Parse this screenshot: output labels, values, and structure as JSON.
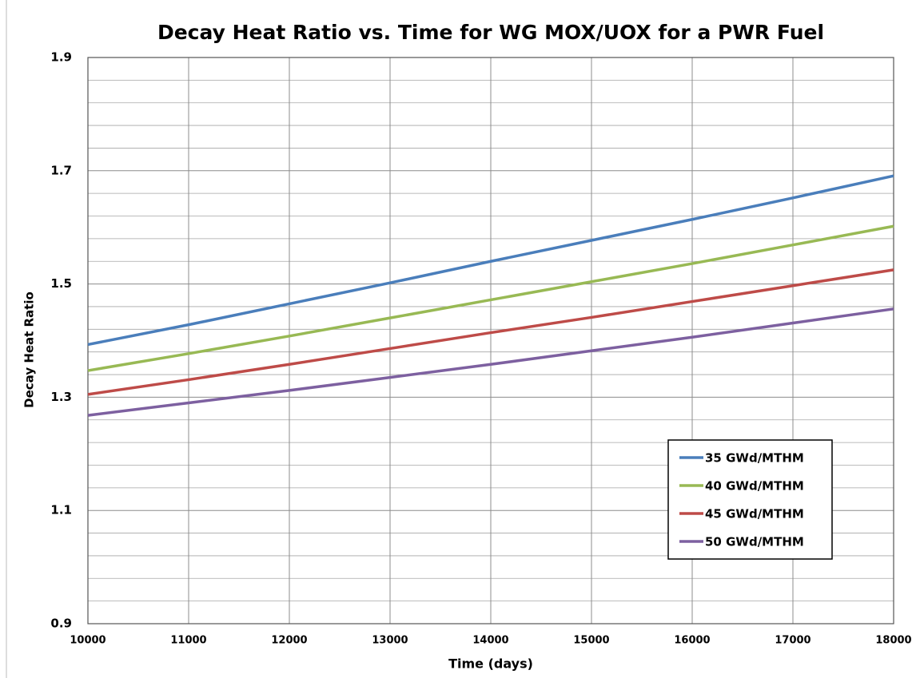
{
  "chart_data": {
    "type": "line",
    "title": "Decay Heat Ratio vs. Time for WG MOX/UOX for a PWR Fuel",
    "xlabel": "Time (days)",
    "ylabel": "Decay Heat Ratio",
    "x": [
      10000,
      11000,
      12000,
      13000,
      14000,
      15000,
      16000,
      17000,
      18000
    ],
    "series": [
      {
        "name": "35 GWd/MTHM",
        "color": "#4a7ebb",
        "values": [
          1.393,
          1.428,
          1.465,
          1.502,
          1.54,
          1.577,
          1.614,
          1.652,
          1.691
        ]
      },
      {
        "name": "40 GWd/MTHM",
        "color": "#98b954",
        "values": [
          1.347,
          1.377,
          1.408,
          1.44,
          1.472,
          1.504,
          1.536,
          1.569,
          1.602
        ]
      },
      {
        "name": "45 GWd/MTHM",
        "color": "#be4b48",
        "values": [
          1.305,
          1.331,
          1.358,
          1.386,
          1.414,
          1.441,
          1.469,
          1.497,
          1.525
        ]
      },
      {
        "name": "50 GWd/MTHM",
        "color": "#7d60a0",
        "values": [
          1.268,
          1.29,
          1.312,
          1.335,
          1.358,
          1.382,
          1.406,
          1.431,
          1.456
        ]
      }
    ],
    "xlim": [
      10000,
      18000
    ],
    "xticks": [
      10000,
      11000,
      12000,
      13000,
      14000,
      15000,
      16000,
      17000,
      18000
    ],
    "ylim": [
      0.9,
      1.9
    ],
    "yticks": [
      0.9,
      1.1,
      1.3,
      1.5,
      1.7,
      1.9
    ],
    "yticks_minor": [
      0.94,
      0.98,
      1.02,
      1.06,
      1.14,
      1.18,
      1.22,
      1.26,
      1.34,
      1.38,
      1.42,
      1.46,
      1.54,
      1.58,
      1.62,
      1.66,
      1.74,
      1.78,
      1.82,
      1.86
    ],
    "grid": true,
    "legend": "lower right"
  }
}
